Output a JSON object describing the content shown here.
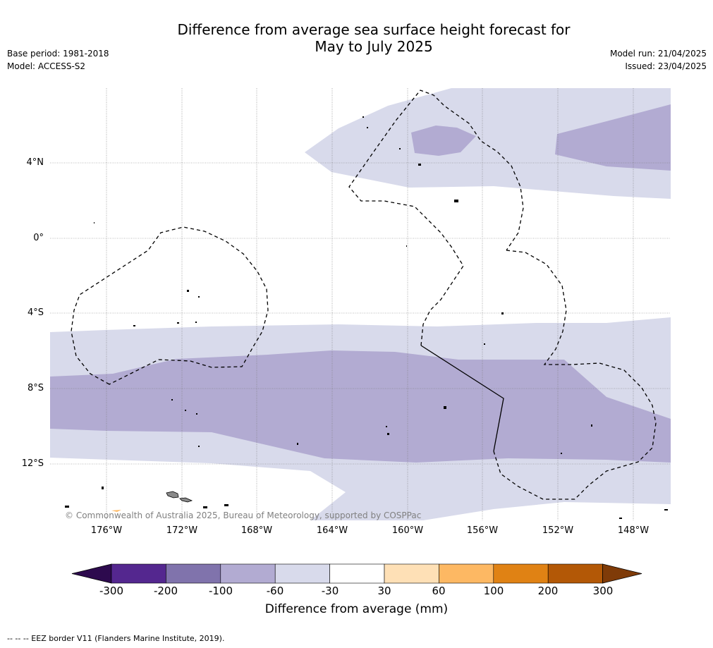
{
  "title_line1": "Difference from average sea surface height forecast for",
  "title_line2": "May to July 2025",
  "base_period": "Base period: 1981-2018",
  "model": "Model: ACCESS-S2",
  "model_run": "Model run: 21/04/2025",
  "issued": "Issued: 23/04/2025",
  "latitude_labels": [
    "4°N",
    "0°",
    "4°S",
    "8°S",
    "12°S"
  ],
  "longitude_labels": [
    "176°W",
    "172°W",
    "168°W",
    "164°W",
    "160°W",
    "156°W",
    "152°W",
    "148°W"
  ],
  "copyright": "© Commonwealth of Australia 2025, Bureau of Meteorology, supported by COSPPac",
  "colorbar": {
    "title": "Difference from average (mm)",
    "ticks": [
      "-300",
      "-200",
      "-100",
      "-60",
      "-30",
      "30",
      "60",
      "100",
      "200",
      "300"
    ],
    "colors": [
      "#2d0a4e",
      "#54278f",
      "#8073ac",
      "#b2abd2",
      "#d8daeb",
      "#ffffff",
      "#fee0b6",
      "#fdb863",
      "#e08214",
      "#b35806",
      "#7f3b08"
    ]
  },
  "footer": "--  --  -- EEZ border V11 (Flanders Marine Institute, 2019)."
}
